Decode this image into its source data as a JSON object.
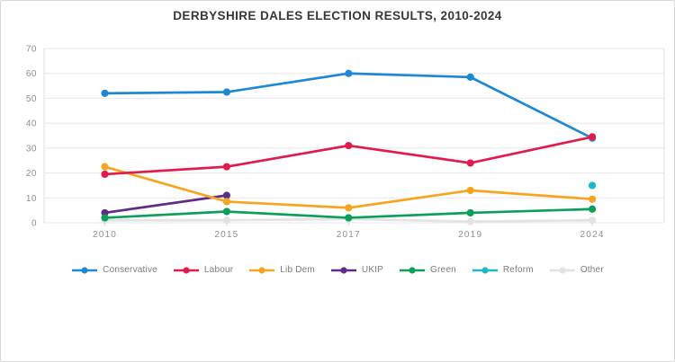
{
  "chart_data": {
    "type": "line",
    "title": "DERBYSHIRE DALES ELECTION RESULTS, 2010-2024",
    "categories": [
      "2010",
      "2015",
      "2017",
      "2019",
      "2024"
    ],
    "series": [
      {
        "name": "Conservative",
        "color": "#1f88d4",
        "values": [
          52,
          52.5,
          60,
          58.5,
          34
        ]
      },
      {
        "name": "Labour",
        "color": "#e31b4c",
        "values": [
          19.5,
          22.5,
          31,
          24,
          34.5
        ]
      },
      {
        "name": "Lib Dem",
        "color": "#f7a521",
        "values": [
          22.5,
          8.5,
          6,
          13,
          9.5
        ]
      },
      {
        "name": "UKIP",
        "color": "#5f2c87",
        "values": [
          4,
          11,
          null,
          null,
          null
        ]
      },
      {
        "name": "Green",
        "color": "#0ba05a",
        "values": [
          2,
          4.5,
          2,
          4,
          5.5
        ]
      },
      {
        "name": "Reform",
        "color": "#19b8cb",
        "values": [
          null,
          null,
          null,
          null,
          15
        ]
      },
      {
        "name": "Other",
        "color": "#e3e3e3",
        "values": [
          1,
          1,
          1.5,
          0.5,
          1
        ]
      }
    ],
    "ylim": [
      0,
      70
    ],
    "ytick_step": 10,
    "yticks": [
      "0",
      "10",
      "20",
      "30",
      "40",
      "50",
      "60",
      "70"
    ],
    "grid": "horizontal",
    "legend_position": "bottom",
    "axis_text_color": "#8f8f8f",
    "grid_color": "#e8e8e8"
  }
}
